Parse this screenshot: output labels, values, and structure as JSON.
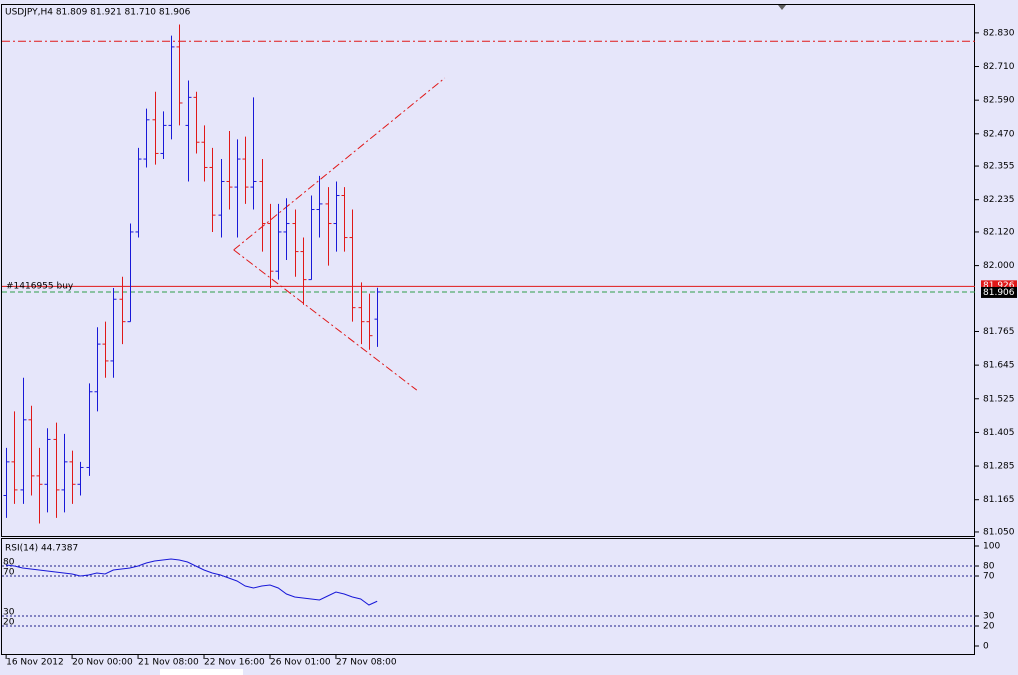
{
  "chart_data": [
    {
      "type": "ohlc",
      "title": "USDJPY,H4  81.809 81.921 81.710 81.906",
      "xlim": [
        -0.5,
        117.5
      ],
      "xticks": [
        {
          "value": 0,
          "label": "16 Nov 2012"
        },
        {
          "value": 8,
          "label": "20 Nov 00:00"
        },
        {
          "value": 16,
          "label": "21 Nov 08:00"
        },
        {
          "value": 24,
          "label": "22 Nov 16:00"
        },
        {
          "value": 32,
          "label": "26 Nov 01:00"
        },
        {
          "value": 40,
          "label": "27 Nov 08:00"
        }
      ],
      "ylim": [
        81.032,
        82.933
      ],
      "yticks": [
        {
          "value": 82.83,
          "label": "82.830"
        },
        {
          "value": 82.71,
          "label": "82.710"
        },
        {
          "value": 82.59,
          "label": "82.590"
        },
        {
          "value": 82.47,
          "label": "82.470"
        },
        82.355,
        82.235,
        {
          "value": 82.12,
          "label": "82.120"
        },
        {
          "value": 82,
          "label": "82.000"
        },
        81.765,
        81.645,
        81.525,
        81.405,
        81.285,
        81.165,
        {
          "value": 81.05,
          "label": "81.050"
        }
      ],
      "up_color": "#1818d8",
      "down_color": "#e01818",
      "open": [
        81.18,
        81.3,
        81.2,
        81.45,
        81.25,
        81.22,
        81.38,
        81.2,
        81.3,
        81.22,
        81.28,
        81.55,
        81.72,
        81.66,
        81.88,
        81.8,
        82.12,
        82.38,
        82.52,
        82.4,
        82.5,
        82.78,
        82.5,
        82.6,
        82.44,
        82.35,
        82.18,
        82.3,
        82.28,
        82.38,
        82.28,
        82.3,
        82.15,
        81.98,
        82.12,
        82.15,
        82.05,
        81.95,
        82.2,
        82.22,
        82.15,
        82.25,
        82.1,
        81.85,
        81.8,
        81.809
      ],
      "high": [
        81.35,
        81.48,
        81.6,
        81.5,
        81.35,
        81.42,
        81.44,
        81.4,
        81.34,
        81.3,
        81.58,
        81.78,
        81.8,
        81.92,
        81.96,
        82.15,
        82.42,
        82.56,
        82.62,
        82.55,
        82.82,
        82.86,
        82.66,
        82.62,
        82.5,
        82.42,
        82.38,
        82.48,
        82.45,
        82.46,
        82.6,
        82.38,
        82.22,
        82.22,
        82.24,
        82.2,
        82.1,
        82.25,
        82.32,
        82.28,
        82.3,
        82.28,
        82.2,
        81.94,
        81.9,
        81.921
      ],
      "low": [
        81.1,
        81.15,
        81.15,
        81.18,
        81.08,
        81.12,
        81.1,
        81.12,
        81.15,
        81.18,
        81.25,
        81.48,
        81.6,
        81.6,
        81.72,
        81.8,
        82.1,
        82.35,
        82.36,
        82.38,
        82.45,
        82.5,
        82.3,
        82.4,
        82.3,
        82.12,
        82.1,
        82.2,
        82.1,
        82.22,
        82.2,
        82.05,
        81.92,
        81.95,
        82.02,
        81.96,
        81.86,
        81.95,
        82.1,
        82.0,
        82.05,
        82.05,
        81.8,
        81.72,
        81.7,
        81.71
      ],
      "close": [
        81.3,
        81.2,
        81.45,
        81.25,
        81.22,
        81.38,
        81.2,
        81.3,
        81.22,
        81.28,
        81.55,
        81.72,
        81.66,
        81.88,
        81.8,
        82.12,
        82.38,
        82.52,
        82.4,
        82.5,
        82.78,
        82.58,
        82.6,
        82.44,
        82.35,
        82.18,
        82.3,
        82.28,
        82.38,
        82.28,
        82.3,
        82.15,
        81.98,
        82.12,
        82.15,
        82.05,
        81.95,
        82.2,
        82.22,
        82.15,
        82.25,
        82.1,
        81.85,
        81.8,
        81.75,
        81.906
      ],
      "lines": [
        {
          "value": 82.8,
          "color": "#e01818"
        }
      ],
      "order": {
        "label": "#1416955 buy",
        "value": 81.926,
        "color": "#e01818"
      },
      "bid": 81.906,
      "bid_color": "#2e9e4a",
      "trendlines": [
        {
          "x": [
            27.6,
            53.2
          ],
          "y": [
            82.056,
            82.669
          ]
        },
        {
          "x": [
            27.6,
            49.8
          ],
          "y": [
            82.056,
            81.556
          ]
        }
      ]
    },
    {
      "type": "line",
      "title": "RSI(14) 44.7387",
      "xlim": [
        -0.5,
        117.5
      ],
      "ylim": [
        -9,
        108
      ],
      "yticks": [
        100,
        80,
        70,
        30,
        20,
        0
      ],
      "levels": [
        80,
        70,
        30,
        20
      ],
      "color": "#1818d8",
      "values": [
        81,
        80,
        78,
        77,
        76,
        75,
        74,
        73,
        72,
        70,
        71,
        73,
        72,
        76,
        77,
        78,
        80,
        83,
        85,
        86,
        87,
        86,
        84,
        80,
        76,
        73,
        71,
        68,
        65,
        60,
        58,
        60,
        61,
        58,
        52,
        49,
        48,
        47,
        46,
        50,
        54,
        52,
        49,
        47,
        41,
        44.7387
      ]
    }
  ]
}
